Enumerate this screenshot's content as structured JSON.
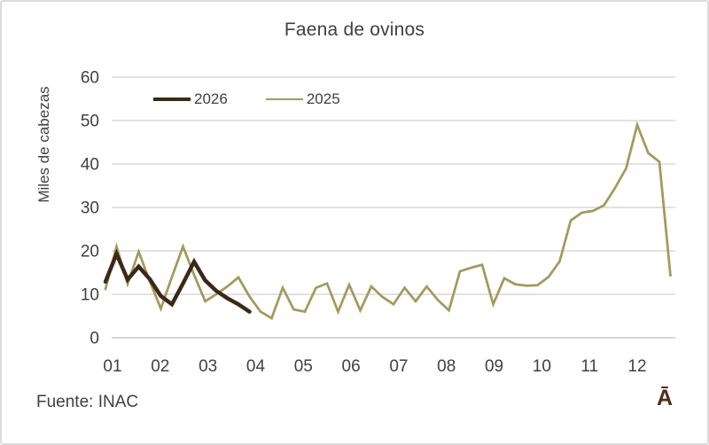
{
  "card": {
    "source": "Fuente: INAC",
    "watermark": "Ā"
  },
  "colors": {
    "text": "#404040",
    "gridline": "#d9d9d9",
    "zero_line": "#cccccc",
    "series_2026": "#3d2817",
    "series_2025": "#a39a5c",
    "watermark": "#4f2d16",
    "card_border": "#dcdcdc"
  },
  "chart_data": {
    "type": "line",
    "title": "Faena de ovinos",
    "xlabel": "",
    "ylabel": "Miles de cabezas",
    "ylim": [
      0,
      60
    ],
    "yticks": [
      0,
      10,
      20,
      30,
      40,
      50,
      60
    ],
    "xticklabels": [
      "01",
      "02",
      "03",
      "04",
      "05",
      "06",
      "07",
      "08",
      "09",
      "10",
      "11",
      "12"
    ],
    "x_unit": "weekly observations, months 01-12",
    "grid": true,
    "legend_position": "top-left inside plot",
    "series": [
      {
        "name": "2026",
        "color": "#3d2817",
        "line_width": 4.5,
        "values": [
          12.9,
          19.3,
          13.4,
          16.4,
          13.5,
          9.6,
          7.7,
          12.5,
          17.5,
          13.2,
          10.8,
          9.1,
          7.7,
          6.0
        ]
      },
      {
        "name": "2025",
        "color": "#a39a5c",
        "line_width": 2.75,
        "values": [
          11.2,
          21.0,
          12.4,
          19.8,
          13.0,
          6.7,
          14.0,
          21.0,
          14.5,
          8.4,
          10.0,
          11.8,
          13.9,
          9.5,
          6.0,
          4.5,
          11.5,
          6.5,
          6.0,
          11.5,
          12.5,
          6.0,
          12.2,
          6.3,
          11.8,
          9.4,
          7.7,
          11.5,
          8.4,
          11.8,
          8.7,
          6.3,
          15.3,
          16.1,
          16.8,
          7.7,
          13.7,
          12.3,
          12.0,
          12.1,
          14.0,
          17.6,
          27.0,
          28.8,
          29.2,
          30.5,
          34.5,
          39.0,
          49.0,
          42.5,
          40.5,
          14.3
        ]
      }
    ],
    "source_note": "Fuente: INAC"
  }
}
